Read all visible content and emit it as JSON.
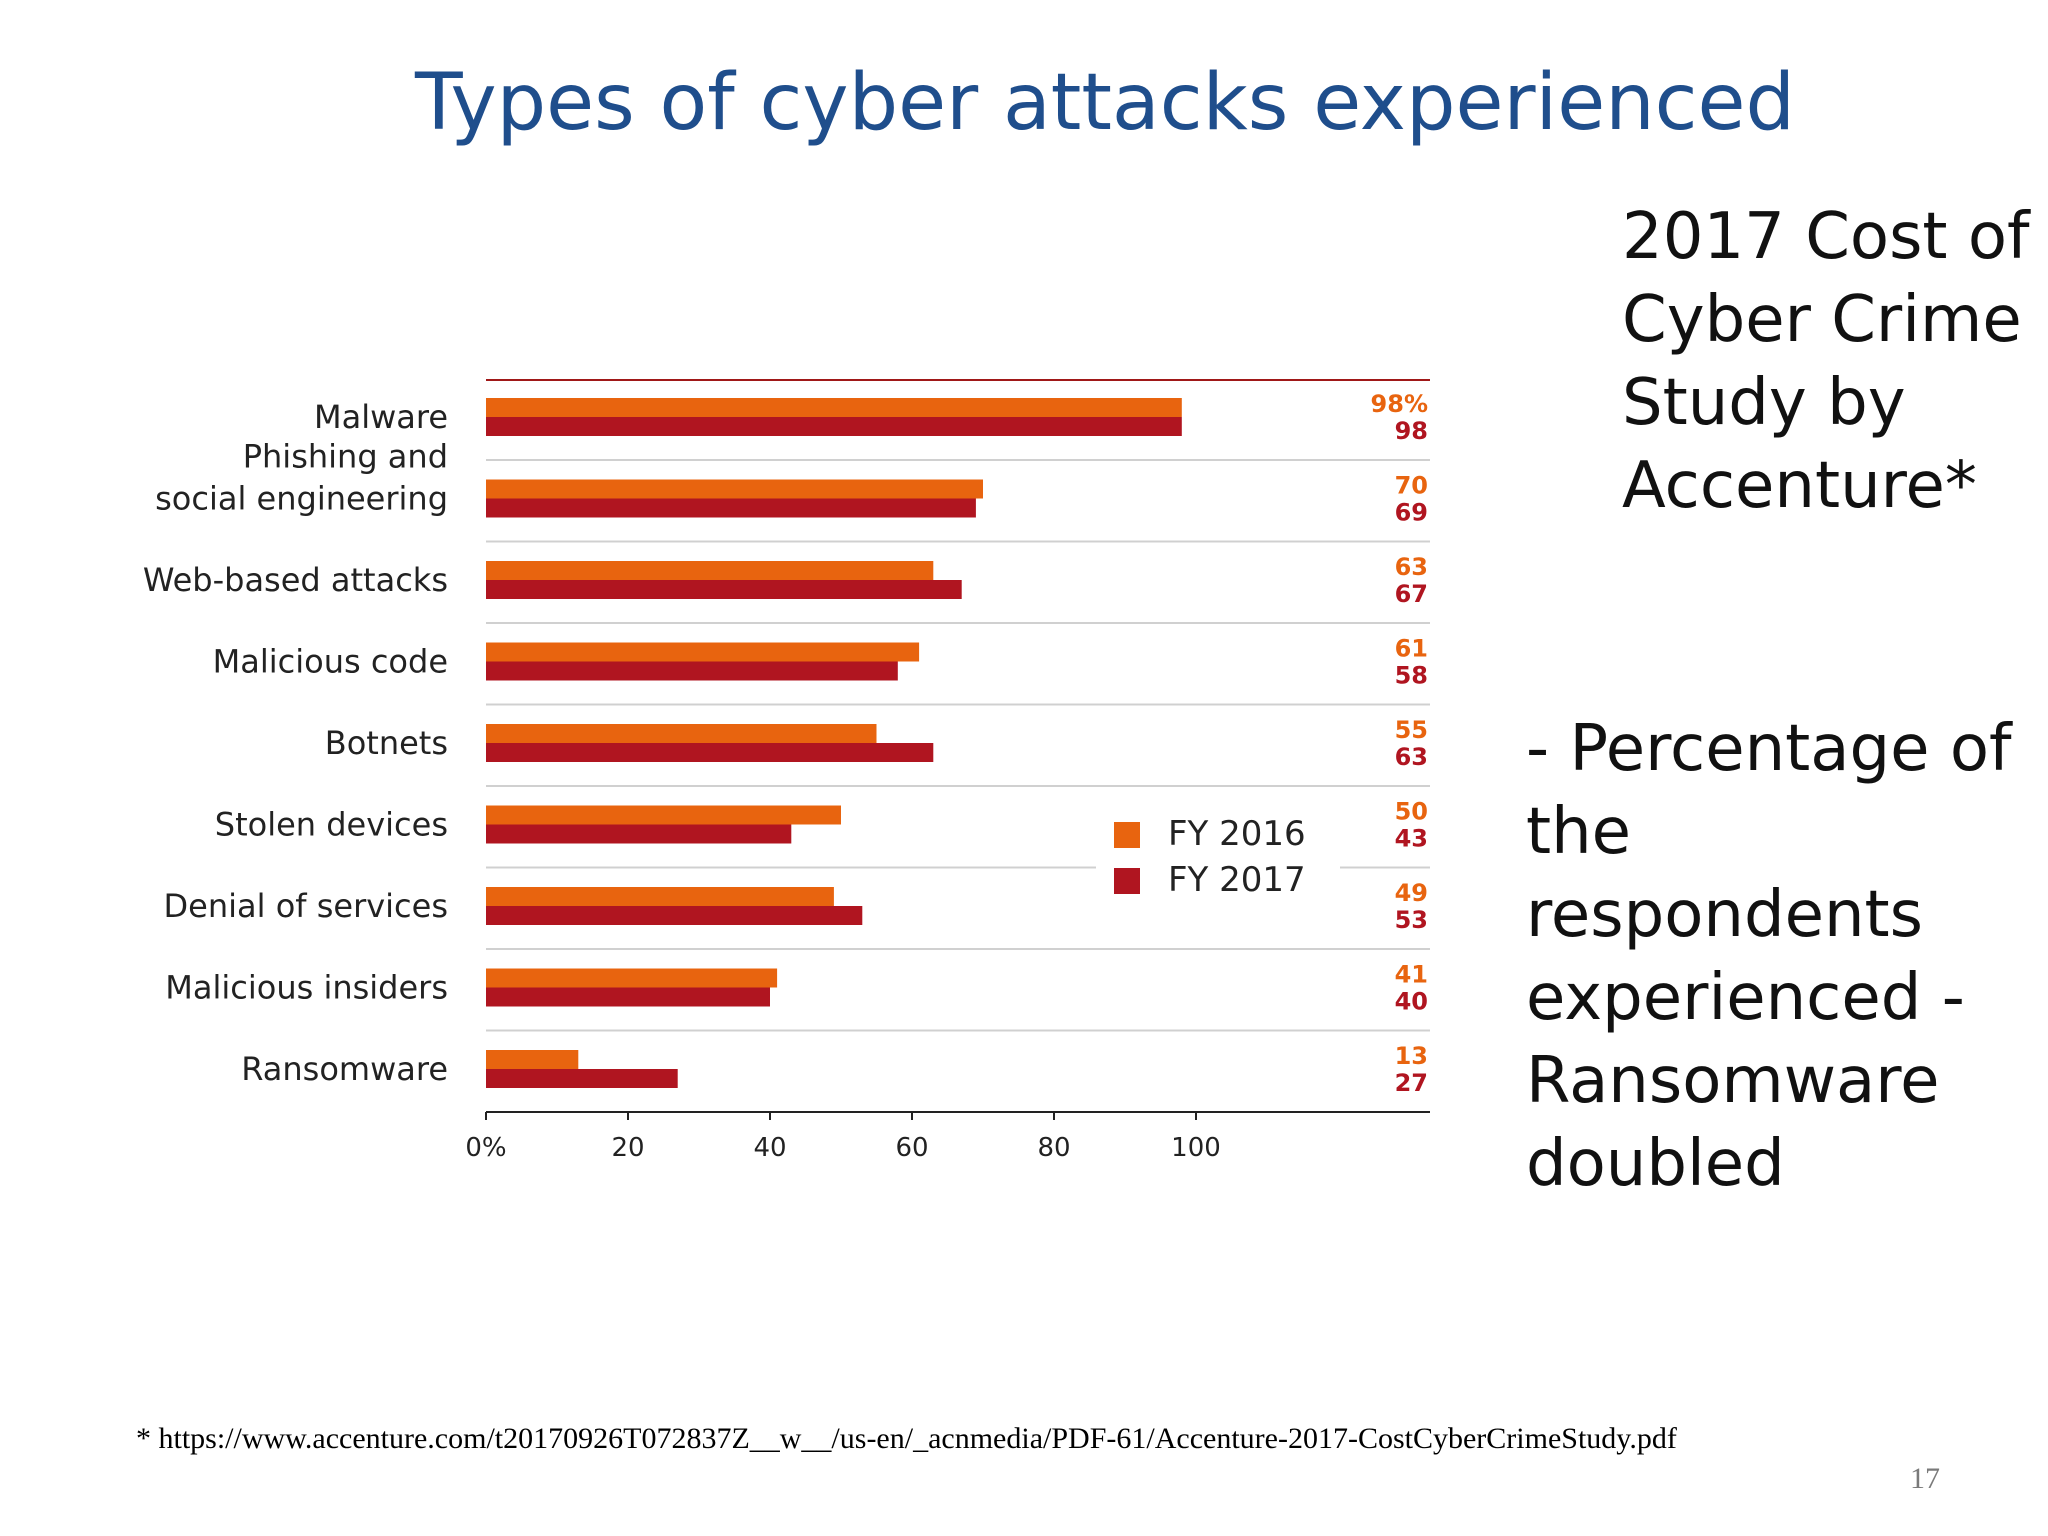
{
  "slide": {
    "title": "Types of cyber attacks experienced",
    "side_title": "2017 Cost of Cyber Crime Study by Accenture*",
    "side_note": "- Percentage of the respondents experienced - Ransomware doubled",
    "footnote": "* https://www.accenture.com/t20170926T072837Z__w__/us-en/_acnmedia/PDF-61/Accenture-2017-CostCyberCrimeStudy.pdf",
    "page_number": "17"
  },
  "colors": {
    "fy2016": "#e8640f",
    "fy2017": "#b01520",
    "top_rule": "#a01818",
    "separator": "#d0d0d0",
    "axis": "#222222"
  },
  "chart_data": {
    "type": "bar",
    "orientation": "horizontal",
    "categories": [
      [
        "Malware"
      ],
      [
        "Phishing and",
        "social engineering"
      ],
      [
        "Web-based attacks"
      ],
      [
        "Malicious code"
      ],
      [
        "Botnets"
      ],
      [
        "Stolen devices"
      ],
      [
        "Denial of services"
      ],
      [
        "Malicious insiders"
      ],
      [
        "Ransomware"
      ]
    ],
    "series": [
      {
        "name": "FY 2016",
        "values": [
          98,
          70,
          63,
          61,
          55,
          50,
          49,
          41,
          13
        ]
      },
      {
        "name": "FY 2017",
        "values": [
          98,
          69,
          67,
          58,
          63,
          43,
          53,
          40,
          27
        ]
      }
    ],
    "value_labels": {
      "fy2016": [
        "98%",
        "70",
        "63",
        "61",
        "55",
        "50",
        "49",
        "41",
        "13"
      ],
      "fy2017": [
        "98",
        "69",
        "67",
        "58",
        "63",
        "43",
        "53",
        "40",
        "27"
      ]
    },
    "x_ticks": [
      "0%",
      "20",
      "40",
      "60",
      "80",
      "100"
    ],
    "x_tick_values": [
      0,
      20,
      40,
      60,
      80,
      100
    ],
    "xlim": [
      0,
      133
    ],
    "grid": false,
    "legend_position": "center-right"
  }
}
